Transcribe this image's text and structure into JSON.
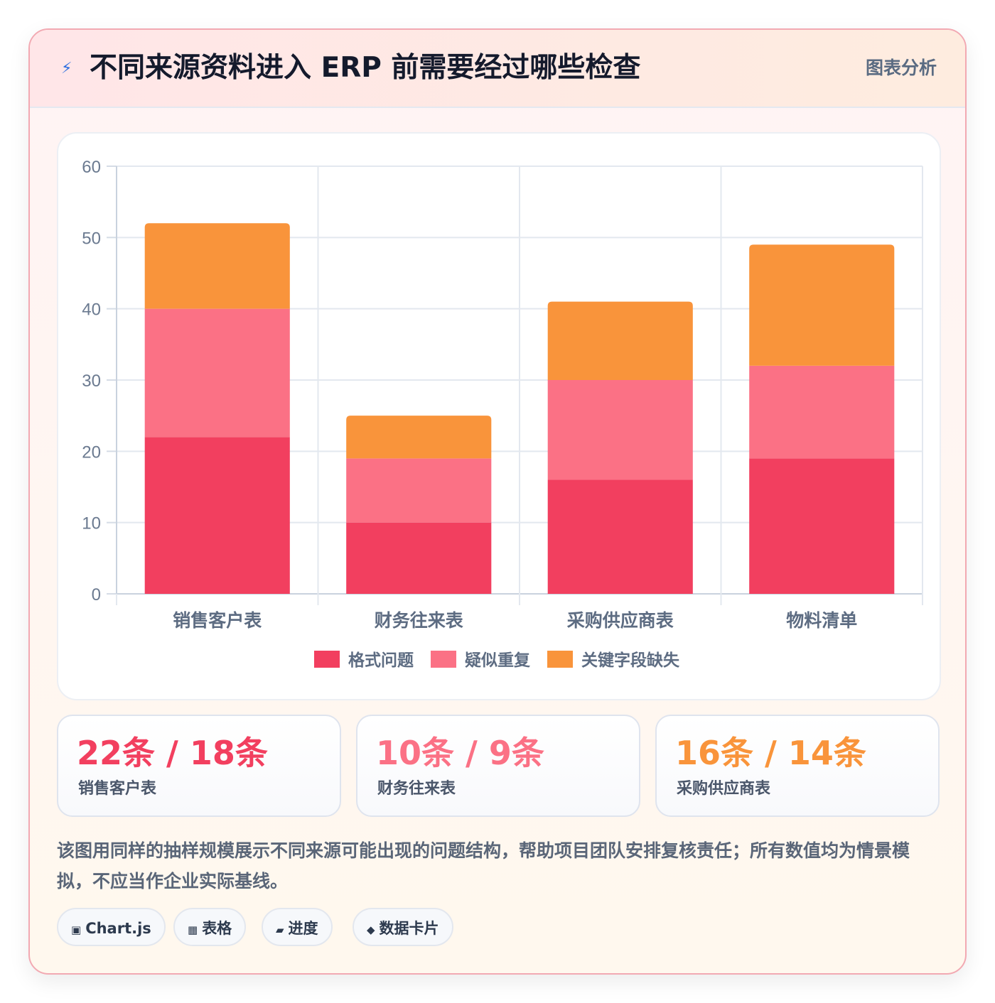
{
  "header": {
    "icon": "lightning-icon",
    "icon_glyph": "⚡",
    "title": "不同来源资料进入 ERP 前需要经过哪些检查",
    "tag": "图表分析"
  },
  "chart_data": {
    "type": "bar",
    "stacked": true,
    "categories": [
      "销售客户表",
      "财务往来表",
      "采购供应商表",
      "物料清单"
    ],
    "series": [
      {
        "name": "格式问题",
        "values": [
          22,
          10,
          16,
          19
        ],
        "color": "#f23f5f"
      },
      {
        "name": "疑似重复",
        "values": [
          18,
          9,
          14,
          13
        ],
        "color": "#fb7185"
      },
      {
        "name": "关键字段缺失",
        "values": [
          12,
          6,
          11,
          17
        ],
        "color": "#f9943b"
      }
    ],
    "ylim": [
      0,
      60
    ],
    "yticks": [
      0,
      10,
      20,
      30,
      40,
      50,
      60
    ],
    "grid": true,
    "legend": "bottom",
    "title": "",
    "xlabel": "",
    "ylabel": ""
  },
  "stats": [
    {
      "value": "22条 / 18条",
      "label": "销售客户表",
      "color": "#f23f5f"
    },
    {
      "value": "10条 / 9条",
      "label": "财务往来表",
      "color": "#fb7185"
    },
    {
      "value": "16条 / 14条",
      "label": "采购供应商表",
      "color": "#f9943b"
    }
  ],
  "description": "该图用同样的抽样规模展示不同来源可能出现的问题结构，帮助项目团队安排复核责任；所有数值均为情景模拟，不应当作企业实际基线。",
  "chips": [
    {
      "icon": "square-icon",
      "glyph": "▣",
      "label": "Chart.js"
    },
    {
      "icon": "grid-icon",
      "glyph": "▦",
      "label": "表格"
    },
    {
      "icon": "bar-icon",
      "glyph": "▰",
      "label": "进度"
    },
    {
      "icon": "diamond-icon",
      "glyph": "◆",
      "label": "数据卡片"
    }
  ]
}
